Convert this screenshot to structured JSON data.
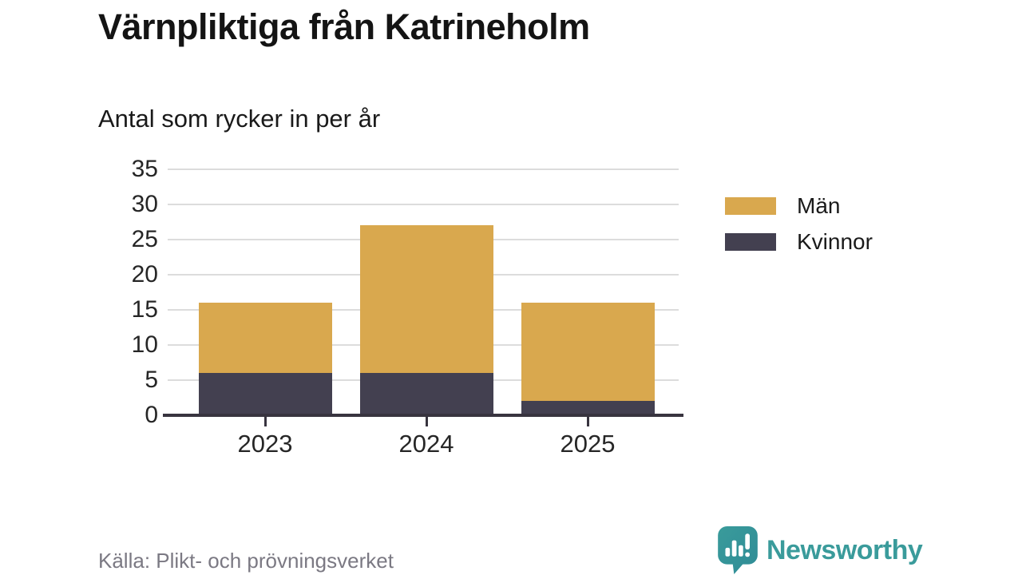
{
  "chart_data": {
    "type": "bar",
    "stacked": true,
    "title": "Värnpliktiga från Katrineholm",
    "subtitle": "Antal som rycker in per år",
    "categories": [
      "2023",
      "2024",
      "2025"
    ],
    "series": [
      {
        "name": "Män",
        "color": "#d9a84e",
        "values": [
          10,
          21,
          14
        ]
      },
      {
        "name": "Kvinnor",
        "color": "#434050",
        "values": [
          6,
          6,
          2
        ]
      }
    ],
    "stacked_totals": [
      16,
      27,
      16
    ],
    "yticks": [
      0,
      5,
      10,
      15,
      20,
      25,
      30,
      35
    ],
    "ylim": [
      0,
      35
    ],
    "xlabel": "",
    "ylabel": "",
    "grid": true,
    "legend_position": "right"
  },
  "footer": {
    "source": "Källa: Plikt- och prövningsverket"
  },
  "brand": {
    "name": "Newsworthy"
  },
  "colors": {
    "background": "#ffffff",
    "grid": "#dcdcdc",
    "axis": "#38343f",
    "title_text": "#141414",
    "tick_text": "#262626",
    "muted_text": "#7b7983",
    "brand_teal": "#3a9b9b",
    "brand_teal_dark": "#2f8c96"
  }
}
